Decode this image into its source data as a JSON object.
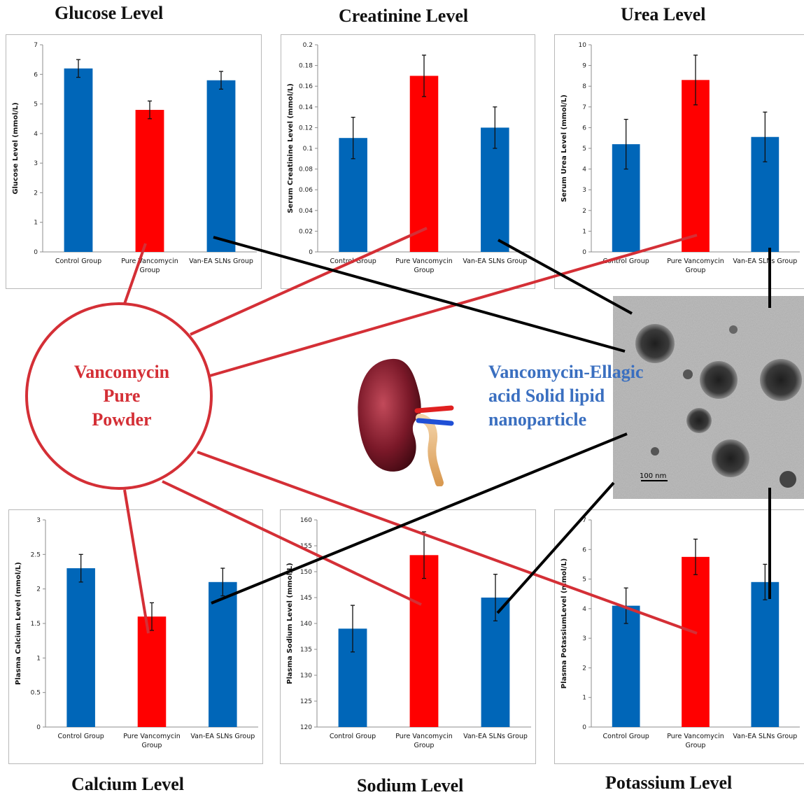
{
  "colors": {
    "blue": "#0066b8",
    "red": "#ff0000",
    "connector_red": "#d42f36",
    "connector_black": "#000000",
    "label_red": "#d42f36",
    "label_blue": "#3a6fc0"
  },
  "panel_titles": {
    "glucose": "Glucose Level",
    "creatinine": "Creatinine Level",
    "urea": "Urea Level",
    "calcium": "Calcium Level",
    "sodium": "Sodium Level",
    "potassium": "Potassium Level"
  },
  "center": {
    "vanco_line1": "Vancomycin",
    "vanco_line2": "Pure",
    "vanco_line3": "Powder",
    "sln_line1": "Vancomycin-Ellagic",
    "sln_line2": "acid Solid lipid",
    "sln_line3": "nanoparticle",
    "scale_bar": "100 nm",
    "kidney_icon": "kidney-icon",
    "tem_image": "tem-micrograph-image"
  },
  "chart_data": [
    {
      "id": "glucose",
      "type": "bar",
      "categories": [
        "Control Group",
        "Pure Vancomycin Group",
        "Van-EA SLNs Group"
      ],
      "values": [
        6.2,
        4.8,
        5.8
      ],
      "errors": [
        0.3,
        0.3,
        0.3
      ],
      "colors": [
        "#0066b8",
        "#ff0000",
        "#0066b8"
      ],
      "ylabel": "Glucose Level (mmol/L)",
      "ylim": [
        0,
        7
      ],
      "yticks": [
        "0",
        "1",
        "2",
        "3",
        "4",
        "5",
        "6",
        "7"
      ]
    },
    {
      "id": "creatinine",
      "type": "bar",
      "categories": [
        "Control Group",
        "Pure Vancomycin Group",
        "Van-EA SLNs Group"
      ],
      "values": [
        0.11,
        0.17,
        0.12
      ],
      "errors": [
        0.02,
        0.02,
        0.02
      ],
      "colors": [
        "#0066b8",
        "#ff0000",
        "#0066b8"
      ],
      "ylabel": "Serum Creatinine Level (mmol/L)",
      "ylim": [
        0,
        0.2
      ],
      "yticks": [
        "0",
        "0.02",
        "0.04",
        "0.06",
        "0.08",
        "0.1",
        "0.12",
        "0.14",
        "0.16",
        "0.18",
        "0.2"
      ]
    },
    {
      "id": "urea",
      "type": "bar",
      "categories": [
        "Control Group",
        "Pure Vancomycin Group",
        "Van-EA SLNs Group"
      ],
      "values": [
        5.2,
        8.3,
        5.55
      ],
      "errors": [
        1.2,
        1.2,
        1.2
      ],
      "colors": [
        "#0066b8",
        "#ff0000",
        "#0066b8"
      ],
      "ylabel": "Serum Urea Level (mmol/L)",
      "ylim": [
        0,
        10
      ],
      "yticks": [
        "0",
        "1",
        "2",
        "3",
        "4",
        "5",
        "6",
        "7",
        "8",
        "9",
        "10"
      ]
    },
    {
      "id": "calcium",
      "type": "bar",
      "categories": [
        "Control Group",
        "Pure Vancomycin Group",
        "Van-EA SLNs Group"
      ],
      "values": [
        2.3,
        1.6,
        2.1
      ],
      "errors": [
        0.2,
        0.2,
        0.2
      ],
      "colors": [
        "#0066b8",
        "#ff0000",
        "#0066b8"
      ],
      "ylabel": "Plasma Calcium Level (mmol/L)",
      "ylim": [
        0,
        3
      ],
      "yticks": [
        "0",
        "0.5",
        "1",
        "1.5",
        "2",
        "2.5",
        "3"
      ]
    },
    {
      "id": "sodium",
      "type": "bar",
      "categories": [
        "Control Group",
        "Pure Vancomycin Group",
        "Van-EA SLNs Group"
      ],
      "values": [
        139,
        153.2,
        145
      ],
      "errors": [
        4.5,
        4.5,
        4.5
      ],
      "colors": [
        "#0066b8",
        "#ff0000",
        "#0066b8"
      ],
      "ylabel": "Plasma Sodium Level (mmol/L)",
      "ylim": [
        120,
        160
      ],
      "yticks": [
        "120",
        "125",
        "130",
        "135",
        "140",
        "145",
        "150",
        "155",
        "160"
      ]
    },
    {
      "id": "potassium",
      "type": "bar",
      "categories": [
        "Control Group",
        "Pure Vancomycin Group",
        "Van-EA SLNs Group"
      ],
      "values": [
        4.1,
        5.75,
        4.9
      ],
      "errors": [
        0.6,
        0.6,
        0.6
      ],
      "colors": [
        "#0066b8",
        "#ff0000",
        "#0066b8"
      ],
      "ylabel": "Plasma PotassiumLevel (mmol/L)",
      "ylim": [
        0,
        7
      ],
      "yticks": [
        "0",
        "1",
        "2",
        "3",
        "4",
        "5",
        "6",
        "7"
      ]
    }
  ]
}
